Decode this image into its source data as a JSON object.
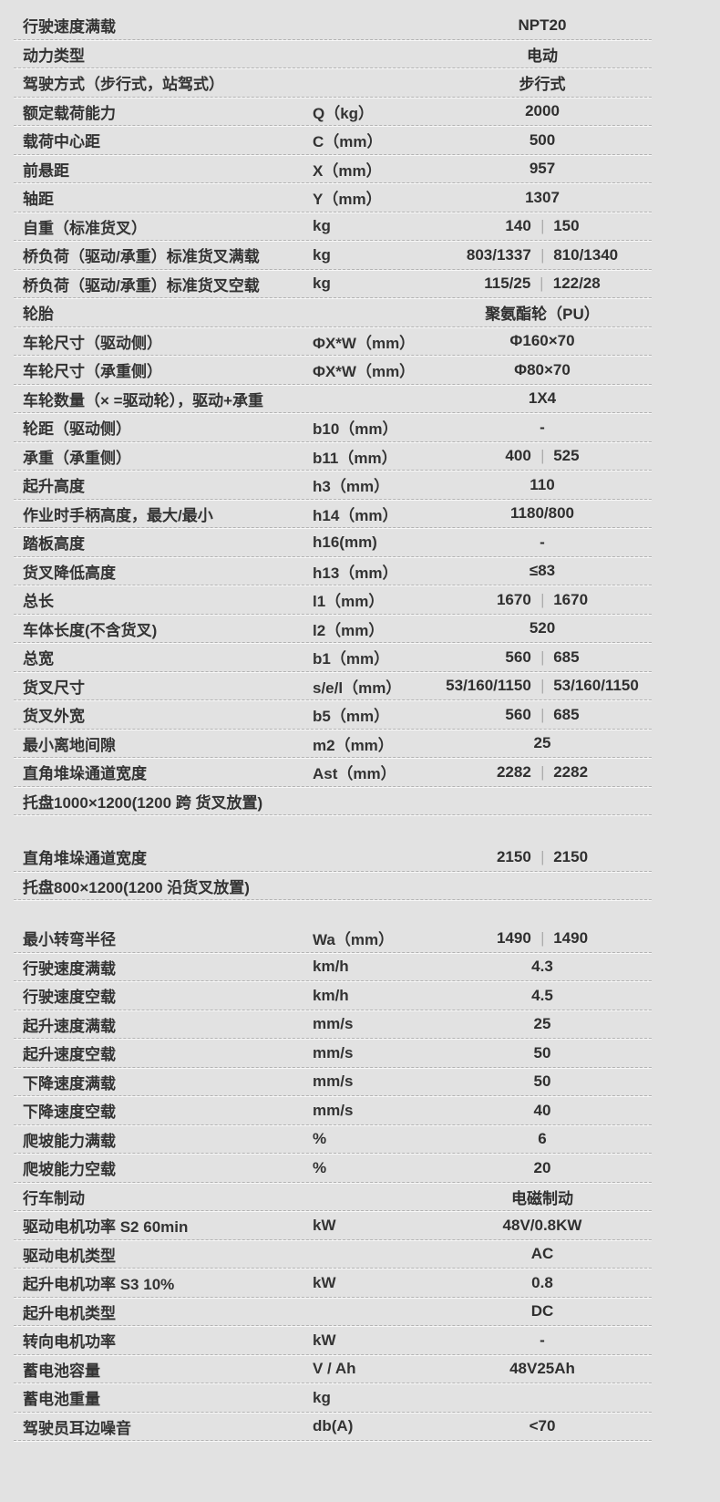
{
  "page": {
    "model": "NPT20",
    "colors": {
      "background": "#e2e2e2",
      "text": "#333333",
      "divider_dash": "#b3b3b3",
      "value_separator": "#8c8c8c"
    }
  },
  "table": {
    "value_separator_glyph": "|",
    "rows": [
      {
        "type": "row",
        "label": "行驶速度满载",
        "unit": "",
        "value": "NPT20"
      },
      {
        "type": "row",
        "label": "动力类型",
        "unit": "",
        "value": "电动"
      },
      {
        "type": "row",
        "label": "驾驶方式（步行式，站驾式）",
        "unit": "",
        "value": "步行式"
      },
      {
        "type": "row",
        "label": "额定载荷能力",
        "unit": "Q（kg）",
        "value": "2000"
      },
      {
        "type": "row",
        "label": "载荷中心距",
        "unit": "C（mm）",
        "value": "500"
      },
      {
        "type": "row",
        "label": "前悬距",
        "unit": "X（mm）",
        "value": "957"
      },
      {
        "type": "row",
        "label": "轴距",
        "unit": "Y（mm）",
        "value": "1307"
      },
      {
        "type": "row",
        "label": "自重（标准货叉）",
        "unit": "kg",
        "value": "140|150"
      },
      {
        "type": "row",
        "label": "桥负荷（驱动/承重）标准货叉满载",
        "unit": "kg",
        "value": "803/1337|810/1340"
      },
      {
        "type": "row",
        "label": "桥负荷（驱动/承重）标准货叉空载",
        "unit": "kg",
        "value": "115/25|122/28"
      },
      {
        "type": "row",
        "label": "轮胎",
        "unit": "",
        "value": "聚氨酯轮（PU）"
      },
      {
        "type": "row",
        "label": "车轮尺寸（驱动侧）",
        "unit": "ΦX*W（mm）",
        "value": "Φ160×70"
      },
      {
        "type": "row",
        "label": "车轮尺寸（承重侧）",
        "unit": "ΦX*W（mm）",
        "value": "Φ80×70"
      },
      {
        "type": "row",
        "label": "车轮数量（× =驱动轮），驱动+承重",
        "unit": "",
        "value": "1X4"
      },
      {
        "type": "row",
        "label": "轮距（驱动侧）",
        "unit": "b10（mm）",
        "value": "-"
      },
      {
        "type": "row",
        "label": "承重（承重侧）",
        "unit": "b11（mm）",
        "value": "400|525"
      },
      {
        "type": "row",
        "label": "起升高度",
        "unit": "h3（mm）",
        "value": "110"
      },
      {
        "type": "row",
        "label": "作业时手柄高度，最大/最小",
        "unit": "h14（mm）",
        "value": "1180/800"
      },
      {
        "type": "row",
        "label": "踏板高度",
        "unit": "h16(mm)",
        "value": "-"
      },
      {
        "type": "row",
        "label": "货叉降低高度",
        "unit": "h13（mm）",
        "value": "≤83"
      },
      {
        "type": "row",
        "label": "总长",
        "unit": "l1（mm）",
        "value": "1670|1670"
      },
      {
        "type": "row",
        "label": "车体长度(不含货叉)",
        "unit": "l2（mm）",
        "value": "520"
      },
      {
        "type": "row",
        "label": "总宽",
        "unit": "b1（mm）",
        "value": "560|685"
      },
      {
        "type": "row",
        "label": "货叉尺寸",
        "unit": "s/e/l（mm）",
        "value": "53/160/1150|53/160/1150"
      },
      {
        "type": "row",
        "label": "货叉外宽",
        "unit": "b5（mm）",
        "value": "560|685"
      },
      {
        "type": "row",
        "label": "最小离地间隙",
        "unit": "m2（mm）",
        "value": "25"
      },
      {
        "type": "row",
        "label": "直角堆垛通道宽度",
        "unit": "Ast（mm）",
        "value": "2282|2282"
      },
      {
        "type": "full",
        "label": "托盘1000×1200(1200 跨 货叉放置)",
        "unit": "",
        "value": ""
      },
      {
        "type": "spacer",
        "height": 30
      },
      {
        "type": "row",
        "label": "直角堆垛通道宽度",
        "unit": "",
        "value": "2150|2150"
      },
      {
        "type": "full",
        "label": "托盘800×1200(1200 沿货叉放置)",
        "unit": "",
        "value": ""
      },
      {
        "type": "spacer",
        "height": 26
      },
      {
        "type": "row",
        "label": "最小转弯半径",
        "unit": "Wa（mm）",
        "value": "1490|1490"
      },
      {
        "type": "row",
        "label": "行驶速度满载",
        "unit": "km/h",
        "value": "4.3"
      },
      {
        "type": "row",
        "label": "行驶速度空载",
        "unit": "km/h",
        "value": "4.5"
      },
      {
        "type": "row",
        "label": "起升速度满载",
        "unit": "mm/s",
        "value": "25"
      },
      {
        "type": "row",
        "label": "起升速度空载",
        "unit": "mm/s",
        "value": "50"
      },
      {
        "type": "row",
        "label": "下降速度满载",
        "unit": "mm/s",
        "value": "50"
      },
      {
        "type": "row",
        "label": "下降速度空载",
        "unit": "mm/s",
        "value": "40"
      },
      {
        "type": "row",
        "label": "爬坡能力满载",
        "unit": "%",
        "value": "6"
      },
      {
        "type": "row",
        "label": "爬坡能力空载",
        "unit": "%",
        "value": "20"
      },
      {
        "type": "row",
        "label": "行车制动",
        "unit": "",
        "value": "电磁制动"
      },
      {
        "type": "row",
        "label": "驱动电机功率  S2 60min",
        "unit": "kW",
        "value": "48V/0.8KW"
      },
      {
        "type": "row",
        "label": "驱动电机类型",
        "unit": "",
        "value": "AC"
      },
      {
        "type": "row",
        "label": "起升电机功率 S3 10%",
        "unit": "kW",
        "value": "0.8"
      },
      {
        "type": "row",
        "label": "起升电机类型",
        "unit": "",
        "value": "DC"
      },
      {
        "type": "row",
        "label": "转向电机功率",
        "unit": "kW",
        "value": "-"
      },
      {
        "type": "row",
        "label": "蓄电池容量",
        "unit": "V / Ah",
        "value": "48V25Ah"
      },
      {
        "type": "row",
        "label": "蓄电池重量",
        "unit": "kg",
        "value": ""
      },
      {
        "type": "row",
        "label": "驾驶员耳边噪音",
        "unit": "db(A)",
        "value": "<70"
      }
    ]
  }
}
